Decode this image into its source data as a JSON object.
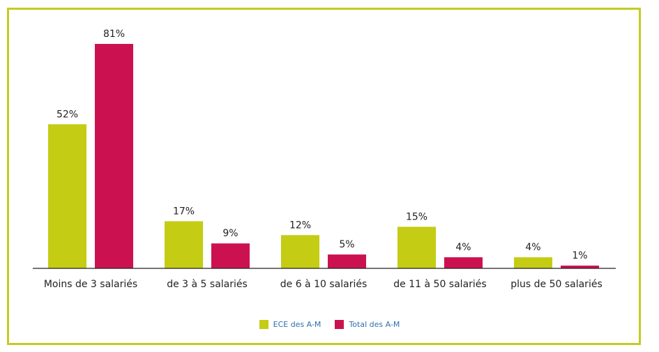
{
  "chart_data": {
    "type": "bar",
    "categories": [
      "Moins de 3 salariés",
      "de 3 à 5 salariés",
      "de 6 à 10 salariés",
      "de 11 à 50 salariés",
      "plus de 50 salariés"
    ],
    "series": [
      {
        "name": "ECE des A-M",
        "values": [
          52,
          17,
          12,
          15,
          4
        ],
        "labels": [
          "52%",
          "17%",
          "12%",
          "15%",
          "4%"
        ],
        "color": "#c4cc14"
      },
      {
        "name": "Total des A-M",
        "values": [
          81,
          9,
          5,
          4,
          1
        ],
        "labels": [
          "81%",
          "9%",
          "5%",
          "4%",
          "1%"
        ],
        "color": "#cc1150"
      }
    ],
    "ylim": [
      0,
      81
    ],
    "grid": false,
    "legend_position": "bottom-center",
    "frame_color": "#c4cc22"
  }
}
